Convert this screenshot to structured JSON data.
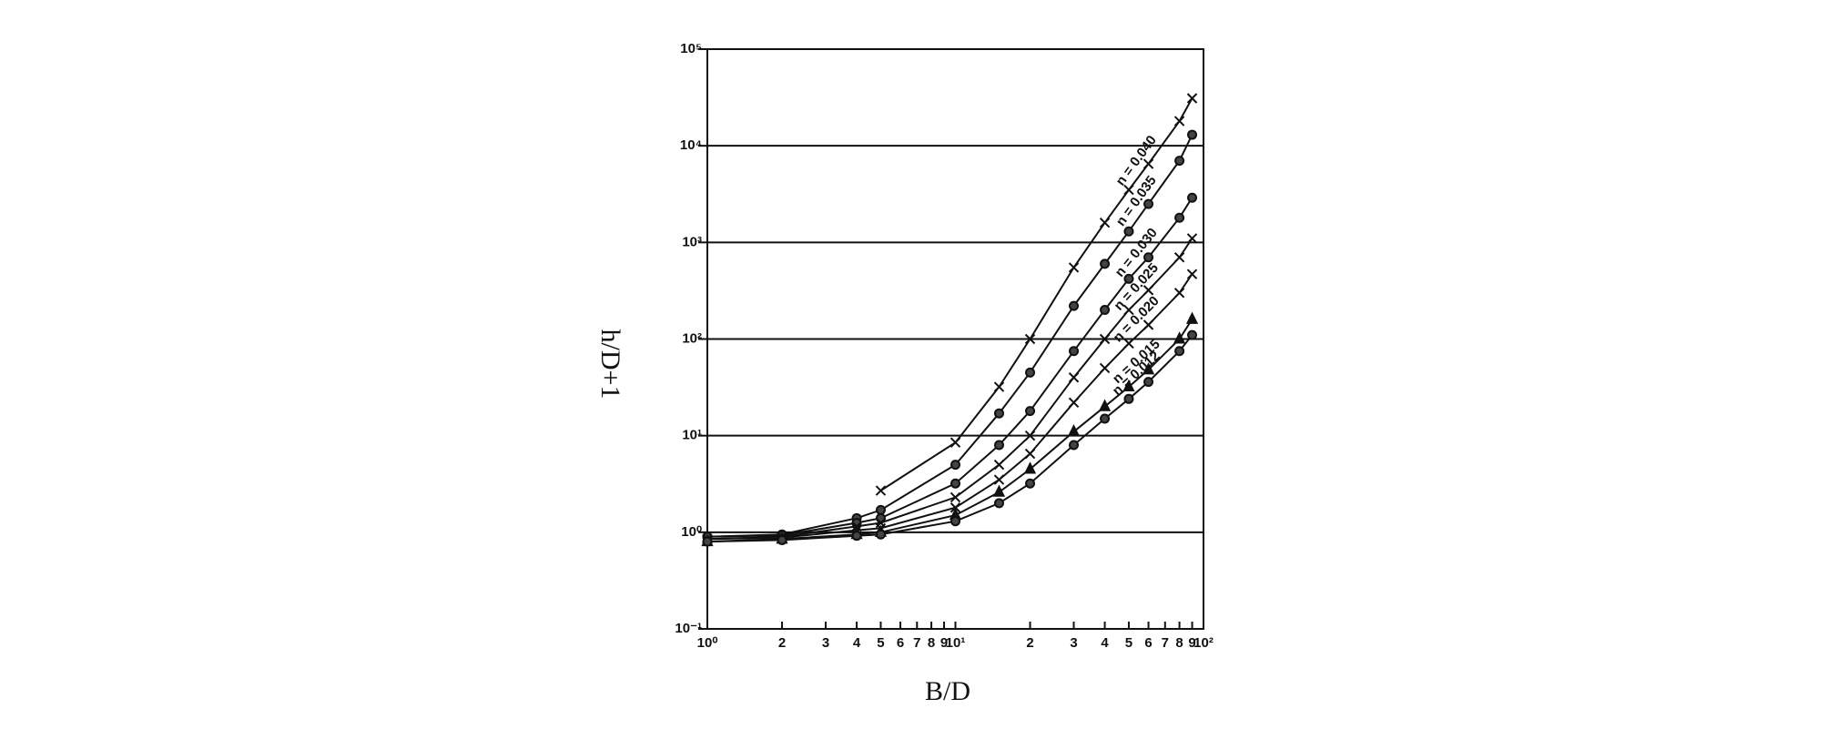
{
  "chart_data": {
    "type": "line",
    "x_label": "B/D",
    "y_label": "h/D+1",
    "log_x": true,
    "log_y": true,
    "grid": true,
    "xlim": [
      1,
      100
    ],
    "ylim": [
      0.1,
      100000
    ],
    "xticks": [
      {
        "value": 1,
        "label": "10⁰"
      },
      2,
      3,
      4,
      5,
      6,
      7,
      8,
      9,
      {
        "value": 10,
        "label": "10¹"
      },
      {
        "value": 20,
        "label": "2"
      },
      {
        "value": 30,
        "label": "3"
      },
      {
        "value": 40,
        "label": "4"
      },
      {
        "value": 50,
        "label": "5"
      },
      {
        "value": 60,
        "label": "6"
      },
      {
        "value": 70,
        "label": "7"
      },
      {
        "value": 80,
        "label": "8"
      },
      {
        "value": 90,
        "label": "9"
      },
      {
        "value": 100,
        "label": "10²"
      }
    ],
    "yticks": [
      {
        "value": 0.1,
        "label": "10⁻¹"
      },
      {
        "value": 1,
        "label": "10⁰"
      },
      {
        "value": 10,
        "label": "10¹"
      },
      {
        "value": 100,
        "label": "10²"
      },
      {
        "value": 1000,
        "label": "10³"
      },
      {
        "value": 10000,
        "label": "10⁴"
      },
      {
        "value": 100000,
        "label": "10⁵"
      }
    ],
    "x": [
      1,
      2,
      4,
      5,
      10,
      15,
      20,
      30,
      40,
      50,
      60,
      80,
      90
    ],
    "series": [
      {
        "name": "n = 0.040",
        "color": "#111111",
        "marker": "x",
        "values": [
          null,
          null,
          null,
          2.7,
          8.5,
          32,
          100,
          550,
          1600,
          3500,
          6500,
          18000,
          31000
        ]
      },
      {
        "name": "n = 0.035",
        "color": "#111111",
        "marker": "circle",
        "values": [
          0.9,
          0.95,
          1.4,
          1.7,
          5,
          17,
          45,
          220,
          600,
          1300,
          2500,
          7000,
          13000
        ]
      },
      {
        "name": "n = 0.030",
        "color": "#111111",
        "marker": "circle",
        "values": [
          0.9,
          0.93,
          1.25,
          1.4,
          3.2,
          8,
          18,
          75,
          200,
          420,
          700,
          1800,
          2900
        ]
      },
      {
        "name": "n = 0.025",
        "color": "#111111",
        "marker": "x",
        "values": [
          0.85,
          0.9,
          1.15,
          1.25,
          2.3,
          5,
          10,
          40,
          100,
          200,
          320,
          700,
          1100
        ]
      },
      {
        "name": "n = 0.020",
        "color": "#111111",
        "marker": "x",
        "values": [
          0.85,
          0.88,
          1.05,
          1.1,
          1.8,
          3.5,
          6.5,
          22,
          50,
          90,
          140,
          300,
          470
        ]
      },
      {
        "name": "n = 0.015",
        "color": "#111111",
        "marker": "triangle",
        "values": [
          0.8,
          0.85,
          0.95,
          1.0,
          1.5,
          2.6,
          4.5,
          11,
          20,
          32,
          48,
          100,
          160
        ]
      },
      {
        "name": "n = 0.012",
        "color": "#111111",
        "marker": "circle",
        "values": [
          0.8,
          0.83,
          0.92,
          0.95,
          1.3,
          2.0,
          3.2,
          8,
          15,
          24,
          36,
          75,
          110
        ]
      }
    ]
  }
}
